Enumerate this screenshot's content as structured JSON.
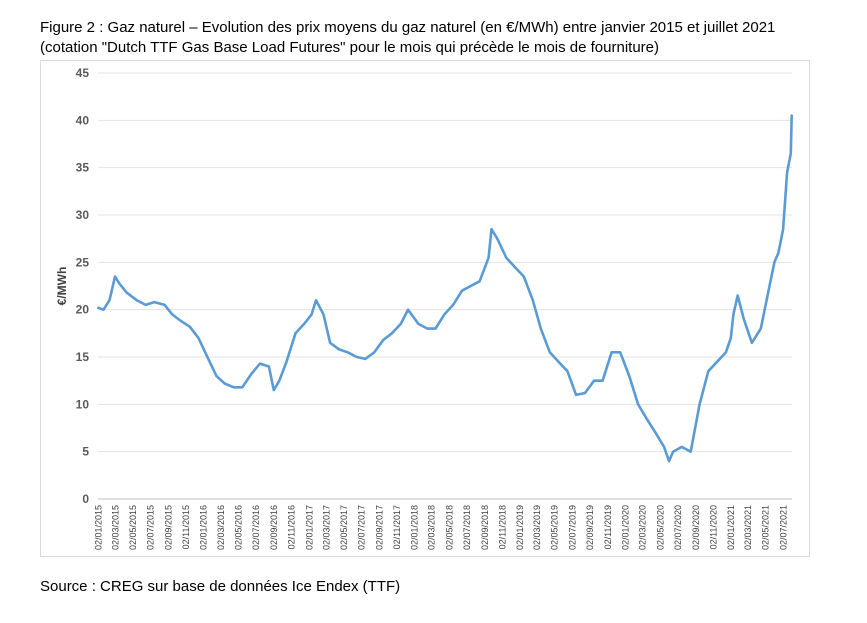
{
  "caption": {
    "line1": "Figure 2 : Gaz naturel – Evolution des prix moyens du gaz naturel (en €/MWh) entre janvier 2015 et juillet 2021",
    "line2": "(cotation \"Dutch TTF Gas Base Load Futures\" pour le mois qui précède le mois de fourniture)"
  },
  "source": "Source : CREG sur base de données Ice Endex (TTF)",
  "chart_data": {
    "type": "line",
    "title": "",
    "xlabel": "",
    "ylabel": "€/MWh",
    "ylim": [
      0,
      45
    ],
    "y_ticks": [
      "0",
      "5",
      "10",
      "15",
      "20",
      "25",
      "30",
      "35",
      "40",
      "45"
    ],
    "grid": true,
    "line_color": "#5b9bd5",
    "x_tick_labels": [
      "02/01/2015",
      "02/03/2015",
      "02/05/2015",
      "02/07/2015",
      "02/09/2015",
      "02/11/2015",
      "02/01/2016",
      "02/03/2016",
      "02/05/2016",
      "02/07/2016",
      "02/09/2016",
      "02/11/2016",
      "02/01/2017",
      "02/03/2017",
      "02/05/2017",
      "02/07/2017",
      "02/09/2017",
      "02/11/2017",
      "02/01/2018",
      "02/03/2018",
      "02/05/2018",
      "02/07/2018",
      "02/09/2018",
      "02/11/2018",
      "02/01/2019",
      "02/03/2019",
      "02/05/2019",
      "02/07/2019",
      "02/09/2019",
      "02/11/2019",
      "02/01/2020",
      "02/03/2020",
      "02/05/2020",
      "02/07/2020",
      "02/09/2020",
      "02/11/2020",
      "02/01/2021",
      "02/03/2021",
      "02/05/2021",
      "02/07/2021"
    ],
    "series": [
      {
        "x": [
          "2015-01-02",
          "2015-01-20",
          "2015-02-10",
          "2015-03-01",
          "2015-03-15",
          "2015-04-10",
          "2015-05-15",
          "2015-06-15",
          "2015-07-15",
          "2015-08-20",
          "2015-09-15",
          "2015-10-15",
          "2015-11-15",
          "2015-12-15",
          "2016-01-15",
          "2016-02-15",
          "2016-03-15",
          "2016-04-15",
          "2016-05-15",
          "2016-06-15",
          "2016-07-15",
          "2016-08-15",
          "2016-09-01",
          "2016-09-20",
          "2016-10-15",
          "2016-11-15",
          "2016-12-15",
          "2017-01-10",
          "2017-01-25",
          "2017-02-20",
          "2017-03-15",
          "2017-04-15",
          "2017-05-15",
          "2017-06-15",
          "2017-07-15",
          "2017-08-15",
          "2017-09-15",
          "2017-10-15",
          "2017-11-15",
          "2017-12-10",
          "2018-01-15",
          "2018-02-15",
          "2018-03-15",
          "2018-04-15",
          "2018-05-15",
          "2018-06-15",
          "2018-07-15",
          "2018-08-15",
          "2018-09-15",
          "2018-09-25",
          "2018-10-15",
          "2018-11-15",
          "2018-12-15",
          "2019-01-15",
          "2019-02-15",
          "2019-03-15",
          "2019-04-15",
          "2019-05-15",
          "2019-06-15",
          "2019-07-15",
          "2019-08-15",
          "2019-09-15",
          "2019-10-15",
          "2019-11-15",
          "2019-12-15",
          "2020-01-15",
          "2020-02-15",
          "2020-03-15",
          "2020-04-15",
          "2020-05-15",
          "2020-06-01",
          "2020-06-15",
          "2020-07-15",
          "2020-08-15",
          "2020-09-15",
          "2020-10-15",
          "2020-11-15",
          "2020-12-15",
          "2021-01-01",
          "2021-01-10",
          "2021-01-25",
          "2021-02-15",
          "2021-03-15",
          "2021-04-15",
          "2021-05-15",
          "2021-06-01",
          "2021-06-15",
          "2021-07-01",
          "2021-07-15",
          "2021-07-28",
          "2021-07-31"
        ],
        "values": [
          20.2,
          20.0,
          21.0,
          23.5,
          22.8,
          21.8,
          21.0,
          20.5,
          20.8,
          20.5,
          19.5,
          18.8,
          18.2,
          17.0,
          15.0,
          13.0,
          12.2,
          11.8,
          11.8,
          13.2,
          14.3,
          14.0,
          11.5,
          12.5,
          14.5,
          17.5,
          18.5,
          19.5,
          21.0,
          19.5,
          16.5,
          15.8,
          15.5,
          15.0,
          14.8,
          15.5,
          16.8,
          17.5,
          18.5,
          20.0,
          18.5,
          18.0,
          18.0,
          19.5,
          20.5,
          22.0,
          22.5,
          23.0,
          25.5,
          28.5,
          27.5,
          25.5,
          24.5,
          23.5,
          21.0,
          18.0,
          15.5,
          14.5,
          13.5,
          11.0,
          11.2,
          12.5,
          12.5,
          15.5,
          15.5,
          13.0,
          10.0,
          8.5,
          7.0,
          5.5,
          4.0,
          5.0,
          5.5,
          5.0,
          10.0,
          13.5,
          14.5,
          15.5,
          17.0,
          19.5,
          21.5,
          19.0,
          16.5,
          18.0,
          22.5,
          25.0,
          26.0,
          28.5,
          34.5,
          36.5,
          40.5
        ]
      }
    ]
  }
}
